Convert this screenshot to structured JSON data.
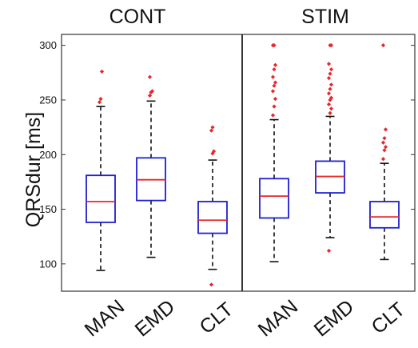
{
  "chart_data": {
    "type": "box",
    "ylabel": "QRSdur [ms]",
    "ylim": [
      75,
      310
    ],
    "yticks": [
      100,
      150,
      200,
      250,
      300
    ],
    "grid": false,
    "legend": "none",
    "colors": {
      "box": "#1f1fd1",
      "median": "#e8262b",
      "whisker": "#111111",
      "outlier": "#e8262b",
      "axis": "#333333"
    },
    "groups": [
      {
        "title": "CONT",
        "boxes": [
          {
            "category": "MAN",
            "min": 94,
            "q1": 138,
            "median": 157,
            "q3": 181,
            "max": 244,
            "outliers": [
              248,
              251,
              276
            ]
          },
          {
            "category": "EMD",
            "min": 106,
            "q1": 158,
            "median": 177,
            "q3": 197,
            "max": 249,
            "outliers": [
              254,
              257,
              258,
              271
            ]
          },
          {
            "category": "CLT",
            "min": 95,
            "q1": 128,
            "median": 140,
            "q3": 157,
            "max": 195,
            "outliers": [
              81,
              201,
              203,
              222,
              225
            ]
          }
        ]
      },
      {
        "title": "STIM",
        "boxes": [
          {
            "category": "MAN",
            "min": 102,
            "q1": 142,
            "median": 162,
            "q3": 178,
            "max": 232,
            "outliers": [
              236,
              244,
              251,
              258,
              263,
              266,
              271,
              278,
              282,
              300,
              300
            ]
          },
          {
            "category": "EMD",
            "min": 124,
            "q1": 165,
            "median": 180,
            "q3": 194,
            "max": 235,
            "outliers": [
              112,
              238,
              242,
              246,
              250,
              252,
              256,
              260,
              264,
              270,
              274,
              278,
              283,
              300,
              300
            ]
          },
          {
            "category": "CLT",
            "min": 104,
            "q1": 133,
            "median": 143,
            "q3": 157,
            "max": 192,
            "outliers": [
              196,
              204,
              207,
              211,
              215,
              223,
              300
            ]
          }
        ]
      }
    ]
  }
}
